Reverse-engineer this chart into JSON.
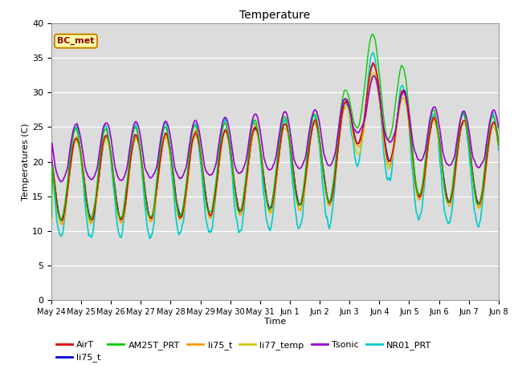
{
  "title": "Temperature",
  "xlabel": "Time",
  "ylabel": "Temperatures (C)",
  "ylim": [
    0,
    40
  ],
  "annotation": "BC_met",
  "bg_color": "#dcdcdc",
  "fig_bg": "#ffffff",
  "series_order": [
    "NR01_PRT",
    "li77_temp",
    "li75_t_b",
    "li75_t",
    "AirT",
    "AM25T_PRT",
    "Tsonic"
  ],
  "series": {
    "AirT": {
      "color": "#dd0000",
      "lw": 1.0
    },
    "li75_t_b": {
      "color": "#0000dd",
      "lw": 1.0
    },
    "AM25T_PRT": {
      "color": "#00cc00",
      "lw": 1.0
    },
    "li75_t": {
      "color": "#ff9900",
      "lw": 1.0
    },
    "li77_temp": {
      "color": "#cccc00",
      "lw": 1.0
    },
    "Tsonic": {
      "color": "#9900cc",
      "lw": 1.2
    },
    "NR01_PRT": {
      "color": "#00cccc",
      "lw": 1.2
    }
  },
  "tick_labels": [
    "May 24",
    "May 25",
    "May 26",
    "May 27",
    "May 28",
    "May 29",
    "May 30",
    "May 31",
    "Jun 1",
    "Jun 2",
    "Jun 3",
    "Jun 4",
    "Jun 5",
    "Jun 6",
    "Jun 7",
    "Jun 8"
  ],
  "yticks": [
    0,
    5,
    10,
    15,
    20,
    25,
    30,
    35,
    40
  ],
  "legend_order": [
    "AirT",
    "li75_t_b",
    "AM25T_PRT",
    "li75_t",
    "li77_temp",
    "Tsonic",
    "NR01_PRT"
  ],
  "legend_labels": [
    "AirT",
    "li75_t",
    "AM25T_PRT",
    "li75_t",
    "li77_temp",
    "Tsonic",
    "NR01_PRT"
  ]
}
